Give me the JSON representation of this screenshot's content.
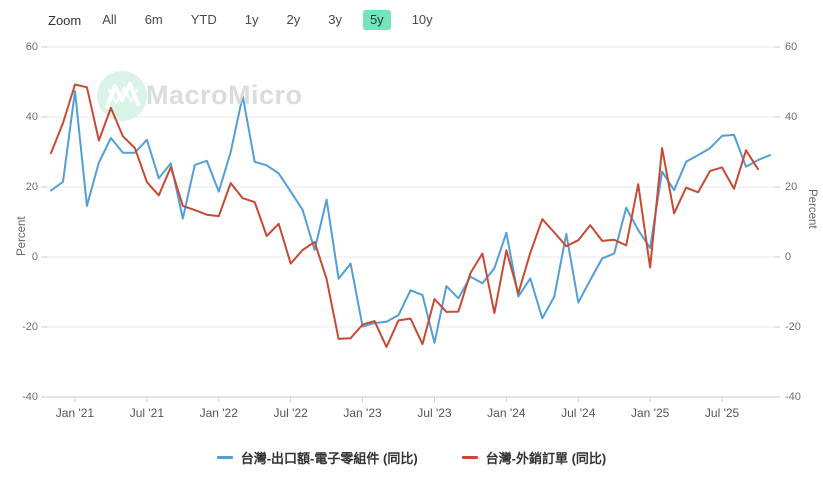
{
  "toolbar": {
    "zoom_label": "Zoom",
    "ranges": [
      "All",
      "6m",
      "YTD",
      "1y",
      "2y",
      "3y",
      "5y",
      "10y"
    ],
    "active": "5y"
  },
  "watermark": {
    "text": "MacroMicro"
  },
  "colors": {
    "series_blue": "#549fd7",
    "series_red": "#c84a35",
    "active_range_bg": "#74e4ba",
    "grid": "#e8e8e8",
    "axis": "#cccccc",
    "watermark_circle": "#d9f3e9"
  },
  "chart_data": {
    "type": "line",
    "title": "",
    "ylabel_left": "Percent",
    "ylabel_right": "Percent",
    "ylim": [
      -40,
      60
    ],
    "yticks": [
      60,
      40,
      20,
      0,
      -20,
      -40
    ],
    "grid": true,
    "legend_position": "bottom",
    "xticks": [
      "Jan '21",
      "Jul '21",
      "Jan '22",
      "Jul '22",
      "Jan '23",
      "Jul '23",
      "Jan '24",
      "Jul '24",
      "Jan '25",
      "Jul '25"
    ],
    "xtick_indices": [
      2,
      8,
      14,
      20,
      26,
      32,
      38,
      44,
      50,
      56
    ],
    "x": [
      "2020-11",
      "2020-12",
      "2021-01",
      "2021-02",
      "2021-03",
      "2021-04",
      "2021-05",
      "2021-06",
      "2021-07",
      "2021-08",
      "2021-09",
      "2021-10",
      "2021-11",
      "2021-12",
      "2022-01",
      "2022-02",
      "2022-03",
      "2022-04",
      "2022-05",
      "2022-06",
      "2022-07",
      "2022-08",
      "2022-09",
      "2022-10",
      "2022-11",
      "2022-12",
      "2023-01",
      "2023-02",
      "2023-03",
      "2023-04",
      "2023-05",
      "2023-06",
      "2023-07",
      "2023-08",
      "2023-09",
      "2023-10",
      "2023-11",
      "2023-12",
      "2024-01",
      "2024-02",
      "2024-03",
      "2024-04",
      "2024-05",
      "2024-06",
      "2024-07",
      "2024-08",
      "2024-09",
      "2024-10",
      "2024-11",
      "2024-12",
      "2025-01",
      "2025-02",
      "2025-03",
      "2025-04",
      "2025-05",
      "2025-06",
      "2025-07",
      "2025-08",
      "2025-09",
      "2025-10",
      "2025-11"
    ],
    "series": [
      {
        "name": "台灣-出口額-電子零組件 (同比)",
        "color": "#549fd7",
        "values": [
          19.0,
          21.5,
          47.4,
          14.6,
          27.0,
          34.0,
          29.8,
          29.8,
          33.5,
          22.5,
          26.8,
          11.0,
          26.3,
          27.5,
          18.7,
          30.0,
          46.0,
          27.2,
          26.2,
          23.9,
          18.7,
          13.5,
          2.0,
          16.4,
          -6.2,
          -1.9,
          -19.9,
          -18.9,
          -18.5,
          -16.6,
          -9.5,
          -10.9,
          -24.5,
          -8.3,
          -11.8,
          -5.6,
          -7.5,
          -3.2,
          6.9,
          -11.3,
          -6.1,
          -17.5,
          -11.3,
          6.6,
          -13.0,
          -6.6,
          -0.4,
          1.0,
          14.1,
          7.7,
          2.6,
          24.4,
          19.1,
          27.2,
          29.1,
          31.1,
          34.6,
          34.9,
          25.8,
          27.7,
          29.1
        ]
      },
      {
        "name": "台灣-外銷訂單 (同比)",
        "color": "#c84a35",
        "values": [
          29.7,
          38.3,
          49.3,
          48.5,
          33.3,
          42.6,
          34.5,
          31.1,
          21.4,
          17.6,
          25.7,
          14.6,
          13.4,
          12.1,
          11.7,
          21.1,
          16.8,
          15.7,
          6.0,
          9.5,
          -1.9,
          2.0,
          4.3,
          -6.3,
          -23.4,
          -23.2,
          -19.3,
          -18.3,
          -25.7,
          -18.1,
          -17.6,
          -24.9,
          -12.0,
          -15.7,
          -15.6,
          -4.6,
          1.0,
          -16.0,
          1.9,
          -10.4,
          1.2,
          10.8,
          7.0,
          3.1,
          4.8,
          9.1,
          4.6,
          4.9,
          3.3,
          20.8,
          -3.0,
          31.1,
          12.5,
          19.8,
          18.5,
          24.6,
          25.6,
          19.5,
          30.5,
          25.1,
          null
        ]
      }
    ]
  }
}
